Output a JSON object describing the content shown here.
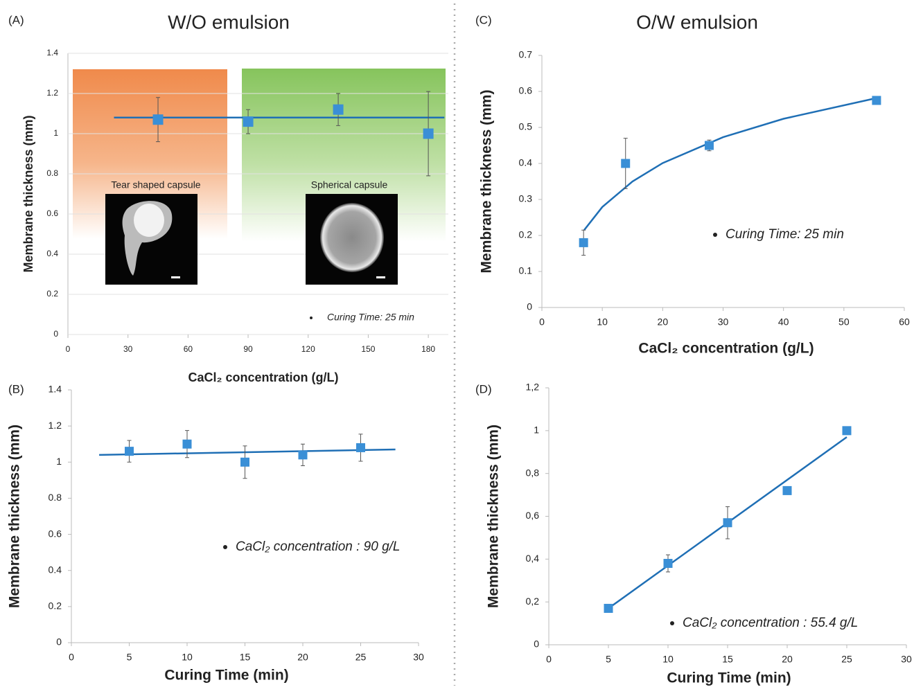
{
  "chart_data": [
    {
      "type": "scatter",
      "label": "(A)",
      "title": "W/O emulsion",
      "x_label": "CaCl₂ concentration (g/L)",
      "y_label": "Membrane thickness (mm)",
      "annotation": "Curing Time: 25 min",
      "x": [
        45,
        90,
        135,
        180
      ],
      "series": [
        {
          "values": [
            1.07,
            1.06,
            1.12,
            1.0
          ],
          "errors": [
            0.11,
            0.06,
            0.08,
            0.21
          ],
          "color": "#3a8fd6"
        }
      ],
      "trendline": {
        "x": [
          23,
          188
        ],
        "values": [
          1.08,
          1.08
        ],
        "color": "#1f6fb5"
      },
      "insets": [
        {
          "caption": "Tear shaped capsule"
        },
        {
          "caption": "Spherical capsule"
        }
      ],
      "xlim": [
        0,
        190
      ],
      "ylim": [
        0,
        1.4
      ],
      "xticks": [
        0,
        30,
        60,
        90,
        120,
        150,
        180
      ],
      "yticks": [
        0,
        0.2,
        0.4,
        0.6,
        0.8,
        1,
        1.2,
        1.4
      ],
      "grid": true
    },
    {
      "type": "scatter",
      "label": "(B)",
      "x_label": "Curing Time (min)",
      "y_label": "Membrane thickness (mm)",
      "annotation": "CaCl₂ concentration : 90 g/L",
      "x": [
        5,
        10,
        15,
        20,
        25
      ],
      "series": [
        {
          "values": [
            1.06,
            1.1,
            1.0,
            1.04,
            1.08
          ],
          "errors": [
            0.06,
            0.075,
            0.09,
            0.06,
            0.075
          ],
          "color": "#3a8fd6"
        }
      ],
      "trendline": {
        "x": [
          2.4,
          28
        ],
        "values": [
          1.04,
          1.07
        ],
        "color": "#1f6fb5"
      },
      "xlim": [
        0,
        30
      ],
      "ylim": [
        0,
        1.4
      ],
      "xticks": [
        0,
        5,
        10,
        15,
        20,
        25,
        30
      ],
      "yticks": [
        0,
        0.2,
        0.4,
        0.6,
        0.8,
        1,
        1.2,
        1.4
      ],
      "grid": false
    },
    {
      "type": "scatter",
      "label": "(C)",
      "title": "O/W emulsion",
      "x_label": "CaCl₂ concentration (g/L)",
      "y_label": "Membrane thickness (mm)",
      "annotation": "Curing Time: 25 min",
      "x": [
        6.9,
        13.85,
        27.7,
        55.4
      ],
      "series": [
        {
          "values": [
            0.18,
            0.4,
            0.45,
            0.575
          ],
          "errors": [
            0.035,
            0.07,
            0.015,
            null
          ],
          "color": "#3a8fd6"
        }
      ],
      "trendline": {
        "x": [
          7,
          10,
          15,
          20,
          30,
          40,
          55
        ],
        "values": [
          0.215,
          0.279,
          0.35,
          0.401,
          0.473,
          0.524,
          0.58
        ],
        "color": "#1f6fb5"
      },
      "xlim": [
        0,
        60
      ],
      "ylim": [
        0,
        0.7
      ],
      "xticks": [
        0,
        10,
        20,
        30,
        40,
        50,
        60
      ],
      "yticks": [
        0,
        0.1,
        0.2,
        0.3,
        0.4,
        0.5,
        0.6,
        0.7
      ],
      "grid": false
    },
    {
      "type": "scatter",
      "label": "(D)",
      "x_label": "Curing Time (min)",
      "y_label": "Membrane thickness (mm)",
      "annotation": "CaCl₂ concentration : 55.4 g/L",
      "x": [
        5,
        10,
        15,
        20,
        25
      ],
      "series": [
        {
          "values": [
            0.17,
            0.38,
            0.57,
            0.72,
            1.0
          ],
          "errors": [
            null,
            0.04,
            0.075,
            null,
            null
          ],
          "color": "#3a8fd6"
        }
      ],
      "trendline": {
        "x": [
          5,
          25
        ],
        "values": [
          0.17,
          0.97
        ],
        "color": "#1f6fb5"
      },
      "xlim": [
        0,
        30
      ],
      "ylim": [
        0,
        1.2
      ],
      "xticks": [
        0,
        5,
        10,
        15,
        20,
        25,
        30
      ],
      "yticks": [
        0,
        {
          "value": 0.2,
          "label": "0,2"
        },
        {
          "value": 0.4,
          "label": "0,4"
        },
        {
          "value": 0.6,
          "label": "0,6"
        },
        {
          "value": 0.8,
          "label": "0,8"
        },
        1,
        {
          "value": 1.2,
          "label": "1,2"
        }
      ],
      "grid": false
    }
  ]
}
